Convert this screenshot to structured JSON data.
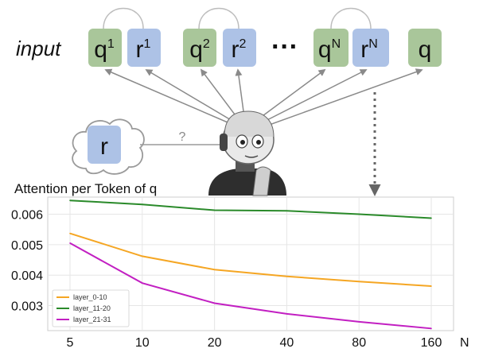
{
  "diagram": {
    "input_label": "input",
    "tokens": [
      {
        "base": "q",
        "sup": "1",
        "kind": "query"
      },
      {
        "base": "r",
        "sup": "1",
        "kind": "response"
      },
      {
        "base": "q",
        "sup": "2",
        "kind": "query"
      },
      {
        "base": "r",
        "sup": "2",
        "kind": "response"
      },
      {
        "base": "q",
        "sup": "N",
        "kind": "query"
      },
      {
        "base": "r",
        "sup": "N",
        "kind": "response"
      },
      {
        "base": "q",
        "sup": "",
        "kind": "query"
      }
    ],
    "ellipsis": "···",
    "cloud_token": "r",
    "question_mark": "?",
    "colors": {
      "query_fill": "#a9c69a",
      "response_fill": "#adc2e6",
      "arrow": "#8a8a8a",
      "dotted_arrow": "#666666"
    }
  },
  "chart_data": {
    "type": "line",
    "title": "Attention per Token of q",
    "xlabel": "N",
    "ylabel": "",
    "categories": [
      "5",
      "10",
      "20",
      "40",
      "80",
      "160"
    ],
    "ylim": [
      0.00218,
      0.00656
    ],
    "yticks": [
      "0.003",
      "0.004",
      "0.005",
      "0.006"
    ],
    "ytick_values": [
      0.003,
      0.004,
      0.005,
      0.006
    ],
    "grid": true,
    "legend_position": "lower-left",
    "series": [
      {
        "name": "layer_0-10",
        "color": "#f5a623",
        "values": [
          0.00537,
          0.00462,
          0.00418,
          0.00396,
          0.00379,
          0.00364
        ]
      },
      {
        "name": "layer_11-20",
        "color": "#2a8a2a",
        "values": [
          0.00645,
          0.00632,
          0.00613,
          0.00611,
          0.006,
          0.00587
        ]
      },
      {
        "name": "layer_21-31",
        "color": "#c21fc2",
        "values": [
          0.00505,
          0.00374,
          0.00308,
          0.00273,
          0.00247,
          0.00225
        ]
      }
    ]
  }
}
